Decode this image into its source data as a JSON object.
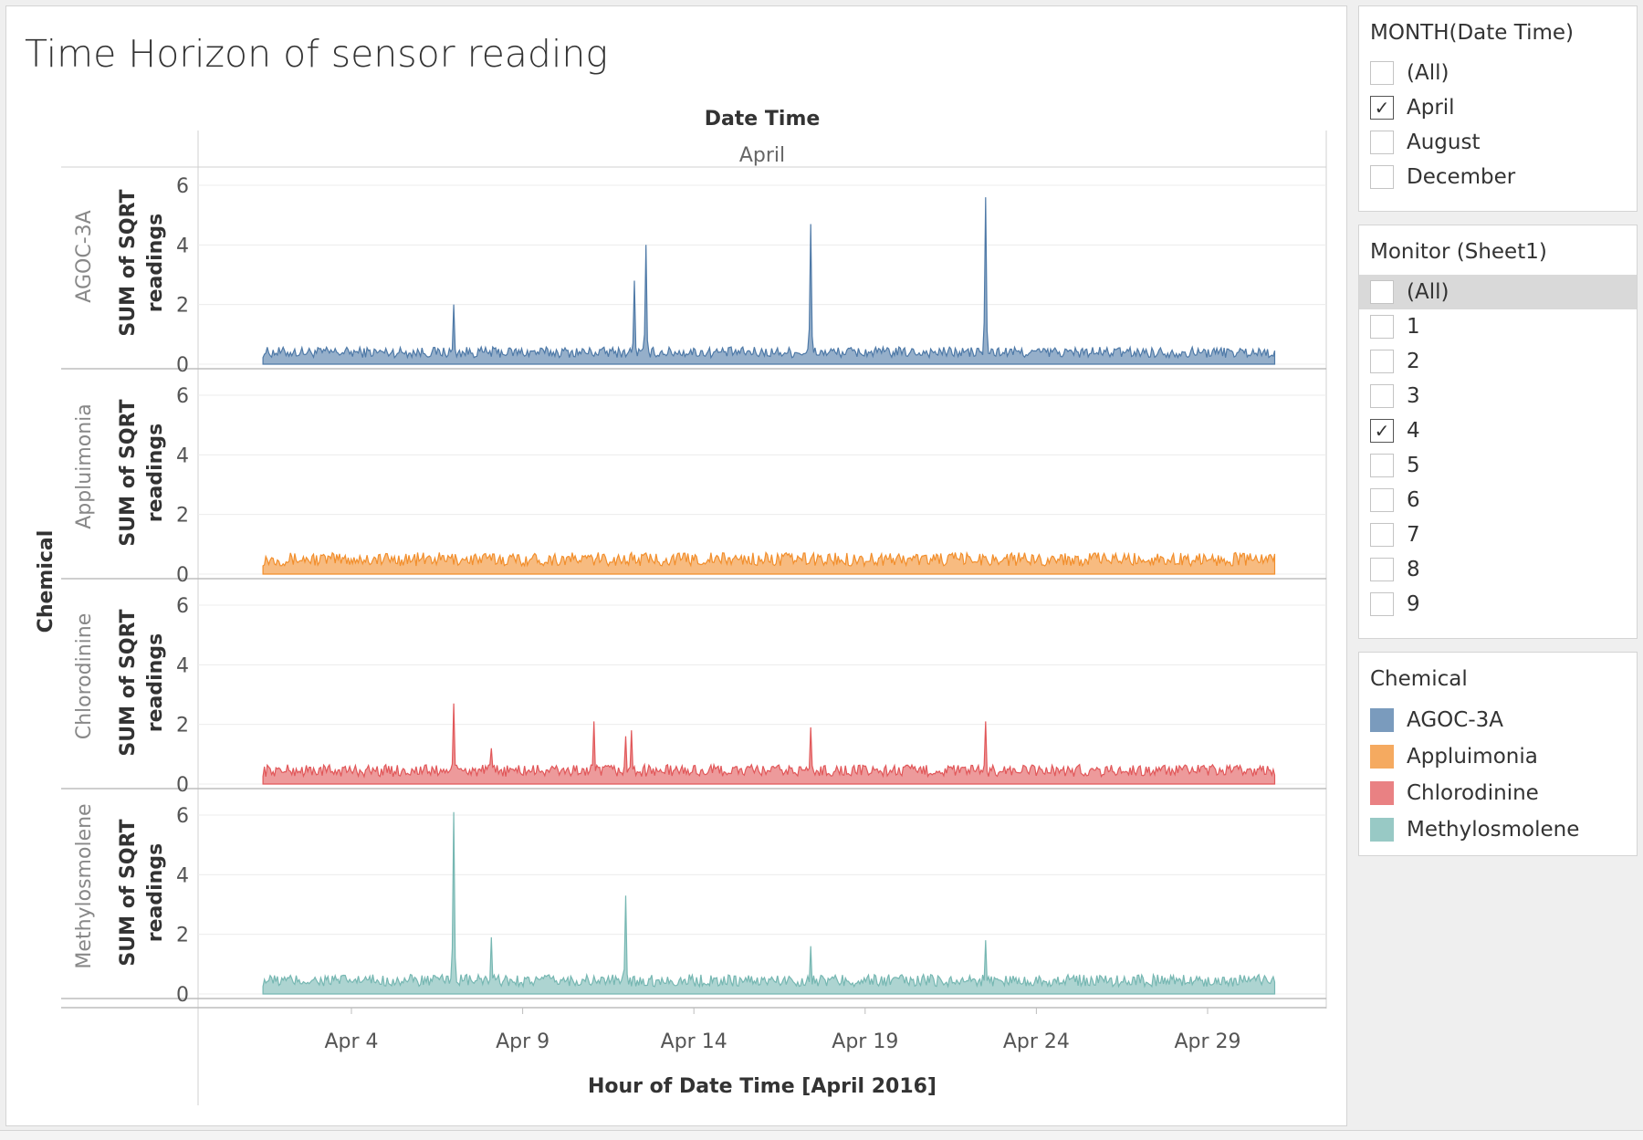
{
  "title": "Time Horizon of sensor reading",
  "filters": {
    "month": {
      "title": "MONTH(Date Time)",
      "items": [
        {
          "label": "(All)",
          "checked": false
        },
        {
          "label": "April",
          "checked": true
        },
        {
          "label": "August",
          "checked": false
        },
        {
          "label": "December",
          "checked": false
        }
      ]
    },
    "monitor": {
      "title": "Monitor (Sheet1)",
      "items": [
        {
          "label": "(All)",
          "checked": false
        },
        {
          "label": "1",
          "checked": false
        },
        {
          "label": "2",
          "checked": false
        },
        {
          "label": "3",
          "checked": false
        },
        {
          "label": "4",
          "checked": true
        },
        {
          "label": "5",
          "checked": false
        },
        {
          "label": "6",
          "checked": false
        },
        {
          "label": "7",
          "checked": false
        },
        {
          "label": "8",
          "checked": false
        },
        {
          "label": "9",
          "checked": false
        }
      ]
    }
  },
  "legend": {
    "title": "Chemical",
    "items": [
      {
        "label": "AGOC-3A",
        "color": "#4e79a7"
      },
      {
        "label": "Appluimonia",
        "color": "#f28e2b"
      },
      {
        "label": "Chlorodinine",
        "color": "#e15759"
      },
      {
        "label": "Methylosmolene",
        "color": "#76b7b2"
      }
    ]
  },
  "chart_data": {
    "type": "area",
    "column_header_title": "Date Time",
    "column_header_value": "April",
    "row_header_title": "Chemical",
    "xlabel": "Hour of Date Time [April 2016]",
    "ylabel": "SUM of SQRT readings",
    "x_range": [
      "2016-04-01",
      "2016-04-30"
    ],
    "x_ticks": [
      "Apr 4",
      "Apr 9",
      "Apr 14",
      "Apr 19",
      "Apr 24",
      "Apr 29"
    ],
    "x_tick_dates": [
      "2016-04-04",
      "2016-04-09",
      "2016-04-14",
      "2016-04-19",
      "2016-04-24",
      "2016-04-29"
    ],
    "ylim": [
      0,
      6
    ],
    "y_ticks": [
      0,
      2,
      4,
      6
    ],
    "grid": true,
    "series": [
      {
        "name": "AGOC-3A",
        "color": "#4e79a7",
        "baseline": 0.4,
        "spikes": [
          {
            "x": "2016-04-07 00:00",
            "y": 2.0
          },
          {
            "x": "2016-04-12 06:00",
            "y": 2.8
          },
          {
            "x": "2016-04-12 14:00",
            "y": 4.0
          },
          {
            "x": "2016-04-17 10:00",
            "y": 4.7
          },
          {
            "x": "2016-04-22 12:00",
            "y": 5.6
          }
        ]
      },
      {
        "name": "Appluimonia",
        "color": "#f28e2b",
        "baseline": 0.5,
        "spikes": []
      },
      {
        "name": "Chlorodinine",
        "color": "#e15759",
        "baseline": 0.45,
        "spikes": [
          {
            "x": "2016-04-07 00:00",
            "y": 2.7
          },
          {
            "x": "2016-04-08 02:00",
            "y": 1.2
          },
          {
            "x": "2016-04-11 02:00",
            "y": 2.1
          },
          {
            "x": "2016-04-12 00:00",
            "y": 1.6
          },
          {
            "x": "2016-04-12 04:00",
            "y": 1.8
          },
          {
            "x": "2016-04-17 10:00",
            "y": 1.9
          },
          {
            "x": "2016-04-22 12:00",
            "y": 2.1
          }
        ]
      },
      {
        "name": "Methylosmolene",
        "color": "#76b7b2",
        "baseline": 0.45,
        "spikes": [
          {
            "x": "2016-04-07 00:00",
            "y": 6.1
          },
          {
            "x": "2016-04-08 02:00",
            "y": 1.9
          },
          {
            "x": "2016-04-12 00:00",
            "y": 3.3
          },
          {
            "x": "2016-04-17 10:00",
            "y": 1.6
          },
          {
            "x": "2016-04-22 12:00",
            "y": 1.8
          }
        ]
      }
    ]
  }
}
